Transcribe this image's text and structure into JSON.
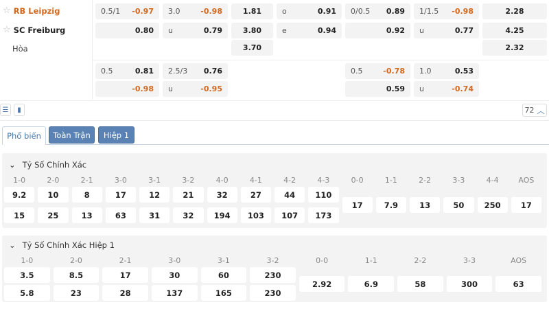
{
  "teams": [
    {
      "name": "RB Leipzig",
      "color": "#d2691e"
    },
    {
      "name": "SC Freiburg",
      "color": "#222"
    },
    {
      "name": "Hòa",
      "color": "#444"
    }
  ],
  "odds_main": [
    [
      {
        "l": "0.5/1",
        "v": "-0.97"
      },
      {
        "l": "3.0",
        "v": "-0.98"
      },
      {
        "l": "",
        "v": "1.81"
      },
      {
        "l": "o",
        "v": "0.91"
      },
      {
        "l": "0/0.5",
        "v": "0.89"
      },
      {
        "l": "1/1.5",
        "v": "-0.98"
      },
      {
        "l": "",
        "v": "2.28"
      }
    ],
    [
      {
        "l": "",
        "v": "0.80"
      },
      {
        "l": "u",
        "v": "0.79"
      },
      {
        "l": "",
        "v": "3.80"
      },
      {
        "l": "e",
        "v": "0.94"
      },
      {
        "l": "",
        "v": "0.92"
      },
      {
        "l": "u",
        "v": "0.77"
      },
      {
        "l": "",
        "v": "4.25"
      }
    ],
    [
      null,
      null,
      {
        "l": "",
        "v": "3.70"
      },
      null,
      null,
      null,
      {
        "l": "",
        "v": "2.32"
      }
    ]
  ],
  "odds_alt": [
    [
      {
        "l": "0.5",
        "v": "0.81"
      },
      {
        "l": "2.5/3",
        "v": "0.76"
      },
      null,
      null,
      {
        "l": "0.5",
        "v": "-0.78"
      },
      {
        "l": "1.0",
        "v": "0.53"
      },
      null
    ],
    [
      {
        "l": "",
        "v": "-0.98"
      },
      {
        "l": "u",
        "v": "-0.95"
      },
      null,
      null,
      {
        "l": "",
        "v": "0.59"
      },
      {
        "l": "u",
        "v": "-0.74"
      },
      null
    ]
  ],
  "toolbar": {
    "count": "72"
  },
  "tabs": [
    "Phổ biến",
    "Toàn Trận",
    "Hiệp 1"
  ],
  "correct_score": {
    "title": "Tỷ Số Chính Xác",
    "two_row": [
      [
        "1-0",
        "9.2",
        "15"
      ],
      [
        "2-0",
        "10",
        "25"
      ],
      [
        "2-1",
        "8",
        "13"
      ],
      [
        "3-0",
        "17",
        "63"
      ],
      [
        "3-1",
        "12",
        "31"
      ],
      [
        "3-2",
        "21",
        "32"
      ],
      [
        "4-0",
        "32",
        "194"
      ],
      [
        "4-1",
        "27",
        "103"
      ],
      [
        "4-2",
        "44",
        "107"
      ],
      [
        "4-3",
        "110",
        "173"
      ]
    ],
    "one_row": [
      [
        "0-0",
        "17"
      ],
      [
        "1-1",
        "7.9"
      ],
      [
        "2-2",
        "13"
      ],
      [
        "3-3",
        "50"
      ],
      [
        "4-4",
        "250"
      ],
      [
        "AOS",
        "17"
      ]
    ]
  },
  "correct_score_h1": {
    "title": "Tỷ Số Chính Xác Hiệp 1",
    "two_row": [
      [
        "1-0",
        "3.5",
        "5.8"
      ],
      [
        "2-0",
        "8.5",
        "23"
      ],
      [
        "2-1",
        "17",
        "28"
      ],
      [
        "3-0",
        "30",
        "137"
      ],
      [
        "3-1",
        "60",
        "165"
      ],
      [
        "3-2",
        "230",
        "230"
      ]
    ],
    "one_row": [
      [
        "0-0",
        "2.92"
      ],
      [
        "1-1",
        "6.9"
      ],
      [
        "2-2",
        "58"
      ],
      [
        "3-3",
        "300"
      ],
      [
        "AOS",
        "63"
      ]
    ]
  }
}
